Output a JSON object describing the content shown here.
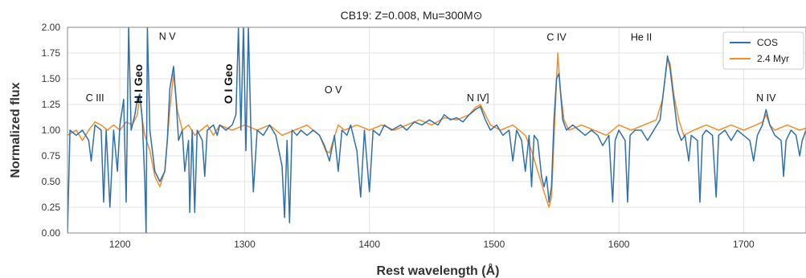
{
  "chart_data": {
    "type": "line",
    "title": "CB19: Z=0.008, Mu=300M⊙",
    "xlabel": "Rest wavelength (Å)",
    "ylabel": "Normalized flux",
    "xlim": [
      1158,
      1750
    ],
    "ylim": [
      0,
      2.0
    ],
    "xticks": [
      1200,
      1300,
      1400,
      1500,
      1600,
      1700
    ],
    "yticks": [
      0.0,
      0.25,
      0.5,
      0.75,
      1.0,
      1.25,
      1.5,
      1.75,
      2.0
    ],
    "xtick_labels": [
      "1200",
      "1300",
      "1400",
      "1500",
      "1600",
      "1700"
    ],
    "ytick_labels": [
      "0.00",
      "0.25",
      "0.50",
      "0.75",
      "1.00",
      "1.25",
      "1.50",
      "1.75",
      "2.00"
    ],
    "grid": true,
    "legend_position": "top-right",
    "series": [
      {
        "name": "COS",
        "color": "#2f6fab",
        "points": [
          [
            1158,
            0.0
          ],
          [
            1160,
            1.0
          ],
          [
            1165,
            0.95
          ],
          [
            1170,
            1.0
          ],
          [
            1175,
            0.9
          ],
          [
            1177,
            0.7
          ],
          [
            1180,
            1.05
          ],
          [
            1185,
            1.0
          ],
          [
            1187,
            0.3
          ],
          [
            1189,
            1.0
          ],
          [
            1192,
            0.25
          ],
          [
            1195,
            1.0
          ],
          [
            1198,
            0.6
          ],
          [
            1200,
            1.05
          ],
          [
            1203,
            1.3
          ],
          [
            1205,
            0.3
          ],
          [
            1207,
            2.0
          ],
          [
            1209,
            1.0
          ],
          [
            1212,
            1.15
          ],
          [
            1214,
            1.3
          ],
          [
            1216,
            1.35
          ],
          [
            1218,
            1.1
          ],
          [
            1220,
            0.5
          ],
          [
            1221,
            0.0
          ],
          [
            1222,
            2.0
          ],
          [
            1224,
            1.0
          ],
          [
            1228,
            0.6
          ],
          [
            1232,
            0.5
          ],
          [
            1236,
            0.6
          ],
          [
            1238,
            0.9
          ],
          [
            1240,
            1.4
          ],
          [
            1243,
            1.62
          ],
          [
            1245,
            1.3
          ],
          [
            1247,
            0.9
          ],
          [
            1250,
            1.0
          ],
          [
            1252,
            0.6
          ],
          [
            1255,
            0.9
          ],
          [
            1256,
            0.2
          ],
          [
            1258,
            1.0
          ],
          [
            1260,
            0.2
          ],
          [
            1262,
            1.0
          ],
          [
            1266,
            0.9
          ],
          [
            1268,
            0.55
          ],
          [
            1270,
            1.0
          ],
          [
            1275,
            1.05
          ],
          [
            1278,
            0.95
          ],
          [
            1280,
            1.05
          ],
          [
            1285,
            1.0
          ],
          [
            1290,
            1.05
          ],
          [
            1293,
            1.15
          ],
          [
            1295,
            2.0
          ],
          [
            1297,
            1.0
          ],
          [
            1299,
            2.0
          ],
          [
            1301,
            0.8
          ],
          [
            1303,
            2.0
          ],
          [
            1305,
            1.0
          ],
          [
            1307,
            0.4
          ],
          [
            1310,
            1.0
          ],
          [
            1315,
            0.95
          ],
          [
            1320,
            1.05
          ],
          [
            1325,
            0.95
          ],
          [
            1330,
            0.65
          ],
          [
            1332,
            0.15
          ],
          [
            1334,
            0.9
          ],
          [
            1336,
            0.1
          ],
          [
            1338,
            1.0
          ],
          [
            1342,
            0.95
          ],
          [
            1345,
            1.0
          ],
          [
            1350,
            0.95
          ],
          [
            1355,
            1.0
          ],
          [
            1360,
            0.95
          ],
          [
            1364,
            0.85
          ],
          [
            1368,
            0.7
          ],
          [
            1372,
            0.95
          ],
          [
            1375,
            0.6
          ],
          [
            1378,
            1.0
          ],
          [
            1382,
            0.95
          ],
          [
            1385,
            1.05
          ],
          [
            1390,
            0.8
          ],
          [
            1393,
            0.35
          ],
          [
            1396,
            1.0
          ],
          [
            1400,
            0.4
          ],
          [
            1403,
            1.0
          ],
          [
            1408,
            0.95
          ],
          [
            1412,
            1.05
          ],
          [
            1418,
            1.0
          ],
          [
            1425,
            1.05
          ],
          [
            1430,
            1.0
          ],
          [
            1436,
            1.08
          ],
          [
            1442,
            1.05
          ],
          [
            1448,
            1.1
          ],
          [
            1455,
            1.05
          ],
          [
            1460,
            1.15
          ],
          [
            1465,
            1.1
          ],
          [
            1470,
            1.12
          ],
          [
            1475,
            1.08
          ],
          [
            1480,
            1.15
          ],
          [
            1485,
            1.2
          ],
          [
            1489,
            1.23
          ],
          [
            1493,
            1.1
          ],
          [
            1497,
            1.0
          ],
          [
            1502,
            1.05
          ],
          [
            1507,
            0.95
          ],
          [
            1512,
            1.0
          ],
          [
            1515,
            0.7
          ],
          [
            1518,
            1.0
          ],
          [
            1522,
            0.9
          ],
          [
            1525,
            0.6
          ],
          [
            1528,
            0.95
          ],
          [
            1530,
            0.45
          ],
          [
            1532,
            0.95
          ],
          [
            1535,
            0.9
          ],
          [
            1538,
            0.55
          ],
          [
            1540,
            0.45
          ],
          [
            1542,
            0.55
          ],
          [
            1544,
            0.3
          ],
          [
            1546,
            0.45
          ],
          [
            1548,
            1.1
          ],
          [
            1550,
            1.5
          ],
          [
            1552,
            1.55
          ],
          [
            1555,
            1.1
          ],
          [
            1558,
            1.0
          ],
          [
            1563,
            1.05
          ],
          [
            1568,
            1.0
          ],
          [
            1573,
            0.95
          ],
          [
            1578,
            1.0
          ],
          [
            1583,
            0.95
          ],
          [
            1587,
            0.85
          ],
          [
            1592,
            0.95
          ],
          [
            1595,
            0.3
          ],
          [
            1597,
            0.9
          ],
          [
            1600,
            1.0
          ],
          [
            1605,
            0.9
          ],
          [
            1607,
            0.3
          ],
          [
            1609,
            0.95
          ],
          [
            1613,
            1.0
          ],
          [
            1618,
            1.0
          ],
          [
            1623,
            0.9
          ],
          [
            1628,
            1.0
          ],
          [
            1633,
            1.1
          ],
          [
            1636,
            1.4
          ],
          [
            1639,
            1.72
          ],
          [
            1641,
            1.6
          ],
          [
            1644,
            1.3
          ],
          [
            1647,
            1.0
          ],
          [
            1650,
            0.9
          ],
          [
            1653,
            0.95
          ],
          [
            1656,
            0.7
          ],
          [
            1658,
            0.95
          ],
          [
            1663,
            0.9
          ],
          [
            1665,
            0.3
          ],
          [
            1667,
            0.95
          ],
          [
            1670,
            1.0
          ],
          [
            1675,
            0.95
          ],
          [
            1678,
            0.35
          ],
          [
            1680,
            0.95
          ],
          [
            1685,
            1.0
          ],
          [
            1690,
            0.9
          ],
          [
            1695,
            1.0
          ],
          [
            1700,
            0.95
          ],
          [
            1705,
            0.9
          ],
          [
            1708,
            0.7
          ],
          [
            1711,
            0.95
          ],
          [
            1715,
            1.05
          ],
          [
            1718,
            1.2
          ],
          [
            1721,
            1.05
          ],
          [
            1725,
            0.95
          ],
          [
            1730,
            0.9
          ],
          [
            1732,
            0.55
          ],
          [
            1734,
            0.9
          ],
          [
            1738,
            1.0
          ],
          [
            1742,
            0.95
          ],
          [
            1745,
            0.75
          ],
          [
            1747,
            0.9
          ],
          [
            1750,
            1.0
          ]
        ]
      },
      {
        "name": "2.4 Myr",
        "color": "#f28e2b",
        "points": [
          [
            1158,
            0.95
          ],
          [
            1165,
            1.0
          ],
          [
            1170,
            0.9
          ],
          [
            1175,
            1.0
          ],
          [
            1180,
            1.08
          ],
          [
            1185,
            1.05
          ],
          [
            1190,
            1.0
          ],
          [
            1195,
            1.05
          ],
          [
            1200,
            1.0
          ],
          [
            1205,
            1.08
          ],
          [
            1210,
            1.05
          ],
          [
            1214,
            1.15
          ],
          [
            1216,
            1.35
          ],
          [
            1218,
            1.1
          ],
          [
            1220,
            0.95
          ],
          [
            1224,
            0.8
          ],
          [
            1228,
            0.55
          ],
          [
            1232,
            0.45
          ],
          [
            1236,
            0.6
          ],
          [
            1240,
            1.2
          ],
          [
            1243,
            1.55
          ],
          [
            1246,
            1.2
          ],
          [
            1250,
            1.0
          ],
          [
            1255,
            1.05
          ],
          [
            1260,
            0.95
          ],
          [
            1265,
            1.0
          ],
          [
            1270,
            1.05
          ],
          [
            1275,
            0.95
          ],
          [
            1280,
            1.05
          ],
          [
            1290,
            1.0
          ],
          [
            1300,
            1.05
          ],
          [
            1310,
            1.0
          ],
          [
            1320,
            1.05
          ],
          [
            1330,
            0.95
          ],
          [
            1340,
            1.0
          ],
          [
            1350,
            1.05
          ],
          [
            1360,
            0.95
          ],
          [
            1365,
            0.8
          ],
          [
            1368,
            0.78
          ],
          [
            1371,
            0.9
          ],
          [
            1375,
            1.05
          ],
          [
            1380,
            1.0
          ],
          [
            1390,
            1.05
          ],
          [
            1400,
            1.0
          ],
          [
            1410,
            1.05
          ],
          [
            1420,
            1.0
          ],
          [
            1430,
            1.05
          ],
          [
            1440,
            1.1
          ],
          [
            1450,
            1.05
          ],
          [
            1460,
            1.12
          ],
          [
            1470,
            1.1
          ],
          [
            1480,
            1.15
          ],
          [
            1485,
            1.22
          ],
          [
            1489,
            1.25
          ],
          [
            1493,
            1.15
          ],
          [
            1497,
            1.05
          ],
          [
            1505,
            1.0
          ],
          [
            1515,
            1.05
          ],
          [
            1525,
            0.95
          ],
          [
            1530,
            0.8
          ],
          [
            1535,
            0.6
          ],
          [
            1540,
            0.4
          ],
          [
            1544,
            0.25
          ],
          [
            1546,
            0.35
          ],
          [
            1549,
            1.2
          ],
          [
            1551,
            1.75
          ],
          [
            1553,
            1.4
          ],
          [
            1556,
            1.1
          ],
          [
            1560,
            1.0
          ],
          [
            1570,
            1.05
          ],
          [
            1580,
            1.0
          ],
          [
            1590,
            0.95
          ],
          [
            1600,
            1.05
          ],
          [
            1610,
            1.0
          ],
          [
            1620,
            1.05
          ],
          [
            1630,
            1.1
          ],
          [
            1635,
            1.3
          ],
          [
            1639,
            1.7
          ],
          [
            1641,
            1.65
          ],
          [
            1644,
            1.35
          ],
          [
            1648,
            1.1
          ],
          [
            1652,
            0.95
          ],
          [
            1660,
            1.0
          ],
          [
            1670,
            1.05
          ],
          [
            1680,
            1.0
          ],
          [
            1690,
            1.05
          ],
          [
            1700,
            1.0
          ],
          [
            1710,
            1.05
          ],
          [
            1715,
            1.08
          ],
          [
            1718,
            1.15
          ],
          [
            1721,
            1.05
          ],
          [
            1725,
            1.0
          ],
          [
            1735,
            1.05
          ],
          [
            1745,
            1.0
          ],
          [
            1750,
            1.02
          ]
        ]
      }
    ],
    "annotations": [
      {
        "text": "C III",
        "x": 1180,
        "y": 1.28,
        "style": "normal"
      },
      {
        "text": "N V",
        "x": 1238,
        "y": 1.88,
        "style": "normal"
      },
      {
        "text": "O V",
        "x": 1371,
        "y": 1.36,
        "style": "normal"
      },
      {
        "text": "N IV]",
        "x": 1487,
        "y": 1.28,
        "style": "normal"
      },
      {
        "text": "C IV",
        "x": 1550,
        "y": 1.87,
        "style": "normal"
      },
      {
        "text": "He II",
        "x": 1618,
        "y": 1.87,
        "style": "normal"
      },
      {
        "text": "N IV",
        "x": 1718,
        "y": 1.28,
        "style": "normal"
      },
      {
        "text": "H I Geo",
        "x": 1218,
        "y": 1.45,
        "style": "bold-vertical"
      },
      {
        "text": "O I Geo",
        "x": 1290,
        "y": 1.45,
        "style": "bold-vertical"
      }
    ]
  }
}
